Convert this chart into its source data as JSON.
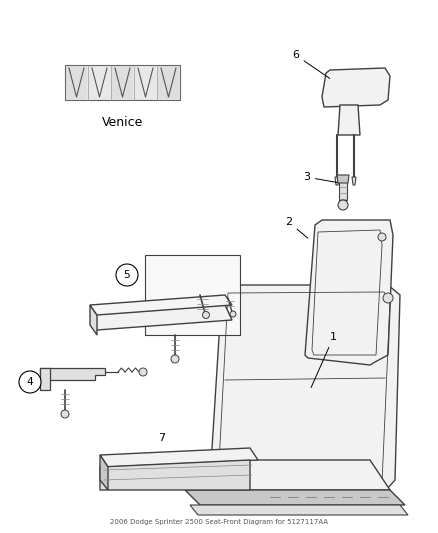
{
  "title": "2006 Dodge Sprinter 2500 Seat-Front Diagram for 5127117AA",
  "background_color": "#ffffff",
  "fig_width": 4.38,
  "fig_height": 5.33,
  "dpi": 100,
  "fabric_label": "Venice",
  "line_color": "#404040",
  "light_fill": "#f2f2f2",
  "mid_fill": "#e0e0e0",
  "dark_fill": "#c8c8c8"
}
